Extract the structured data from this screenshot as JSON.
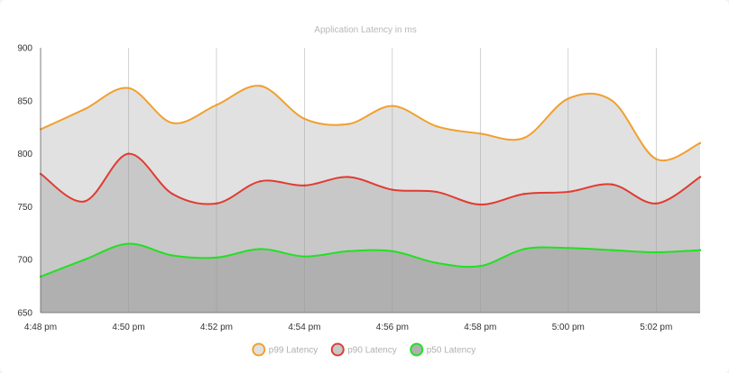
{
  "chart_data": {
    "type": "area",
    "title": "Application Latency in ms",
    "xlabel": "",
    "ylabel": "",
    "ylim": [
      650,
      900
    ],
    "y_ticks": [
      900,
      850,
      800,
      750,
      700,
      650
    ],
    "x_ticks": [
      "4:48 pm",
      "4:50 pm",
      "4:52 pm",
      "4:54 pm",
      "4:56 pm",
      "4:58 pm",
      "5:00 pm",
      "5:02 pm"
    ],
    "x": [
      "4:48 pm",
      "4:49 pm",
      "4:50 pm",
      "4:51 pm",
      "4:52 pm",
      "4:53 pm",
      "4:54 pm",
      "4:55 pm",
      "4:56 pm",
      "4:57 pm",
      "4:58 pm",
      "4:59 pm",
      "5:00 pm",
      "5:01 pm",
      "5:02 pm",
      "5:03 pm"
    ],
    "grid": "vertical",
    "legend_position": "bottom",
    "series": [
      {
        "name": "p99 Latency",
        "line_color": "#f0a030",
        "fill_color": "#e1e1e1",
        "values": [
          823,
          842,
          862,
          829,
          846,
          864,
          833,
          828,
          845,
          826,
          819,
          815,
          852,
          850,
          795,
          810
        ]
      },
      {
        "name": "p90 Latency",
        "line_color": "#e03c31",
        "fill_color": "#c8c8c8",
        "values": [
          781,
          755,
          800,
          762,
          753,
          774,
          770,
          778,
          766,
          764,
          752,
          762,
          764,
          771,
          753,
          778
        ]
      },
      {
        "name": "p50 Latency",
        "line_color": "#22e022",
        "fill_color": "#b0b0b0",
        "values": [
          684,
          700,
          715,
          704,
          702,
          710,
          703,
          708,
          708,
          697,
          694,
          710,
          711,
          709,
          707,
          709
        ]
      }
    ]
  }
}
